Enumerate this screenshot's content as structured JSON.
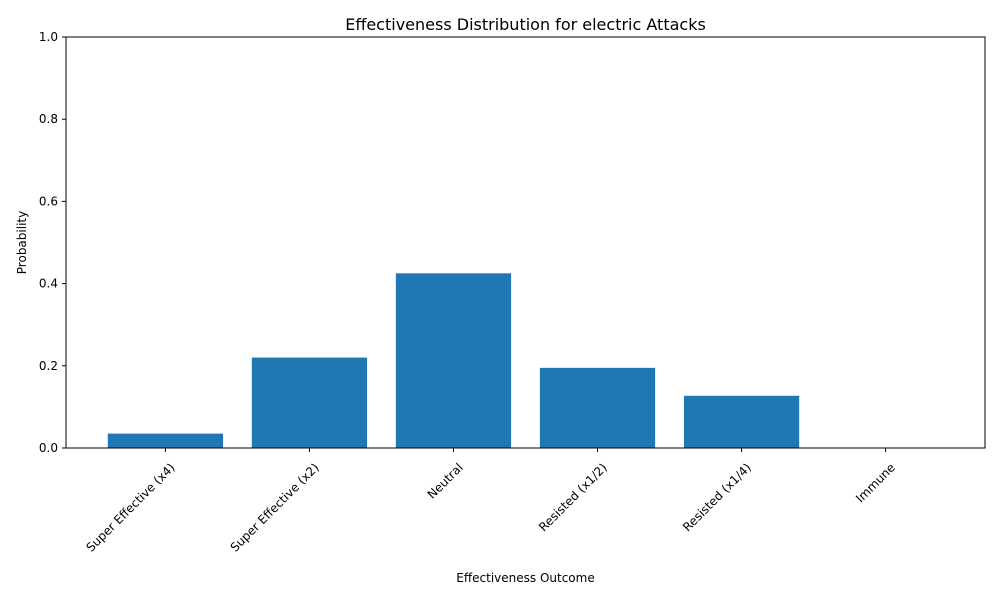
{
  "chart_data": {
    "type": "bar",
    "title": "Effectiveness Distribution for electric Attacks",
    "xlabel": "Effectiveness Outcome",
    "ylabel": "Probability",
    "categories": [
      "Super Effective (x4)",
      "Super Effective (x2)",
      "Neutral",
      "Resisted (x1/2)",
      "Resisted (x1/4)",
      "Immune"
    ],
    "values": [
      0.035,
      0.22,
      0.425,
      0.195,
      0.127,
      0.0
    ],
    "ylim": [
      0,
      1.0
    ],
    "yticks": [
      "0.0",
      "0.2",
      "0.4",
      "0.6",
      "0.8",
      "1.0"
    ],
    "ytick_values": [
      0,
      0.2,
      0.4,
      0.6,
      0.8,
      1.0
    ],
    "grid": false,
    "bar_color": "#1f77b4"
  }
}
